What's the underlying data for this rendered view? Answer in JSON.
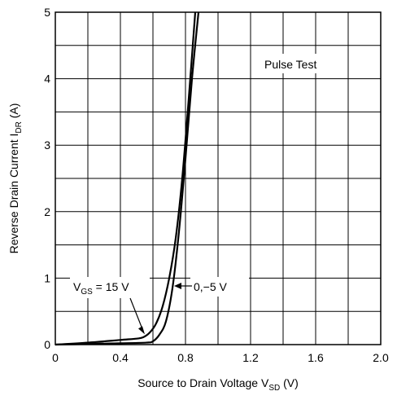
{
  "chart_data": {
    "type": "line",
    "x_axis": {
      "label_main": "Source to Drain Voltage V",
      "label_sub": "SD",
      "label_unit": " (V)",
      "min": 0,
      "max": 2.0,
      "ticks": [
        0,
        0.4,
        0.8,
        1.2,
        1.6,
        2.0
      ],
      "tick_labels": [
        "0",
        "0.4",
        "0.8",
        "1.2",
        "1.6",
        "2.0"
      ],
      "minor_step": 0.2
    },
    "y_axis": {
      "label_main": "Reverse Drain Current I",
      "label_sub": "DR",
      "label_unit": " (A)",
      "min": 0,
      "max": 5,
      "ticks": [
        0,
        1,
        2,
        3,
        4,
        5
      ],
      "tick_labels": [
        "0",
        "1",
        "2",
        "3",
        "4",
        "5"
      ],
      "minor_step": 0.5
    },
    "grid": true,
    "annotation": "Pulse Test",
    "series": [
      {
        "label_main": "V",
        "label_sub": "GS",
        "label_rest": " = 15 V",
        "x": [
          0,
          0.2,
          0.4,
          0.5,
          0.54,
          0.58,
          0.62,
          0.66,
          0.7,
          0.74,
          0.78,
          0.82,
          0.86
        ],
        "y": [
          0,
          0.03,
          0.07,
          0.09,
          0.11,
          0.18,
          0.32,
          0.58,
          1.0,
          1.6,
          2.5,
          3.7,
          5.0
        ]
      },
      {
        "label_main": "0,−5 V",
        "x": [
          0,
          0.2,
          0.4,
          0.56,
          0.6,
          0.64,
          0.68,
          0.72,
          0.76,
          0.8,
          0.84,
          0.88
        ],
        "y": [
          0,
          0.01,
          0.02,
          0.03,
          0.05,
          0.15,
          0.35,
          0.85,
          1.7,
          2.8,
          4.0,
          5.0
        ]
      }
    ]
  }
}
